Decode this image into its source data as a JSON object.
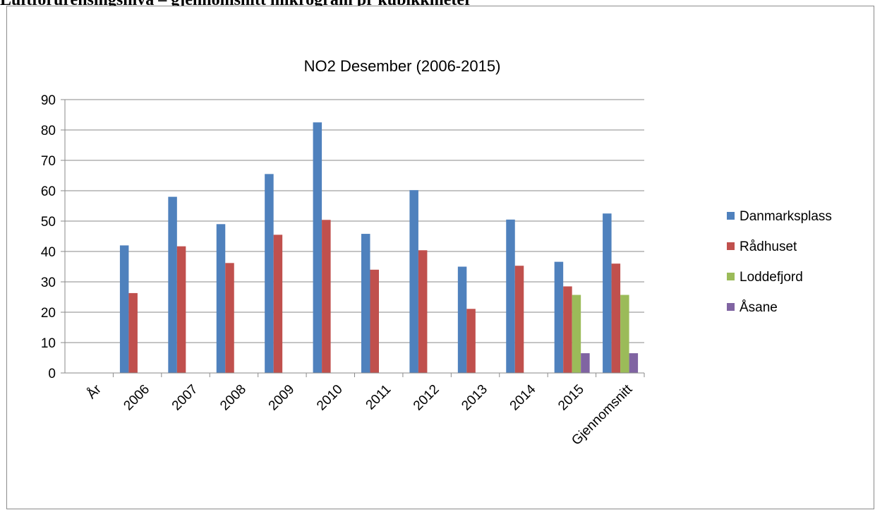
{
  "page": {
    "heading": "Luftforurensingsnivå – gjennomsnitt mikrogram pr kubikkmeter"
  },
  "chart_data": {
    "type": "bar",
    "title": "NO2 Desember (2006-2015)",
    "xlabel": "",
    "ylabel": "",
    "categories": [
      "År",
      "2006",
      "2007",
      "2008",
      "2009",
      "2010",
      "2011",
      "2012",
      "2013",
      "2014",
      "2015",
      "Gjennomsnitt"
    ],
    "series": [
      {
        "name": "Danmarksplass",
        "color": "#4f81bd",
        "values": [
          null,
          42,
          58,
          49,
          65.5,
          82.5,
          45.8,
          60.2,
          35,
          50.5,
          36.6,
          52.5
        ]
      },
      {
        "name": "Rådhuset",
        "color": "#c0504d",
        "values": [
          null,
          26.3,
          41.7,
          36.2,
          45.5,
          50.4,
          34,
          40.4,
          21.1,
          35.3,
          28.5,
          36
        ]
      },
      {
        "name": "Loddefjord",
        "color": "#9bbb59",
        "values": [
          null,
          null,
          null,
          null,
          null,
          null,
          null,
          null,
          null,
          null,
          25.7,
          25.7
        ]
      },
      {
        "name": "Åsane",
        "color": "#8064a2",
        "values": [
          null,
          null,
          null,
          null,
          null,
          null,
          null,
          null,
          null,
          null,
          6.5,
          6.5
        ]
      }
    ],
    "ylim": [
      0,
      90
    ],
    "yticks": [
      0,
      10,
      20,
      30,
      40,
      50,
      60,
      70,
      80,
      90
    ],
    "grid": true,
    "legend_position": "right"
  }
}
